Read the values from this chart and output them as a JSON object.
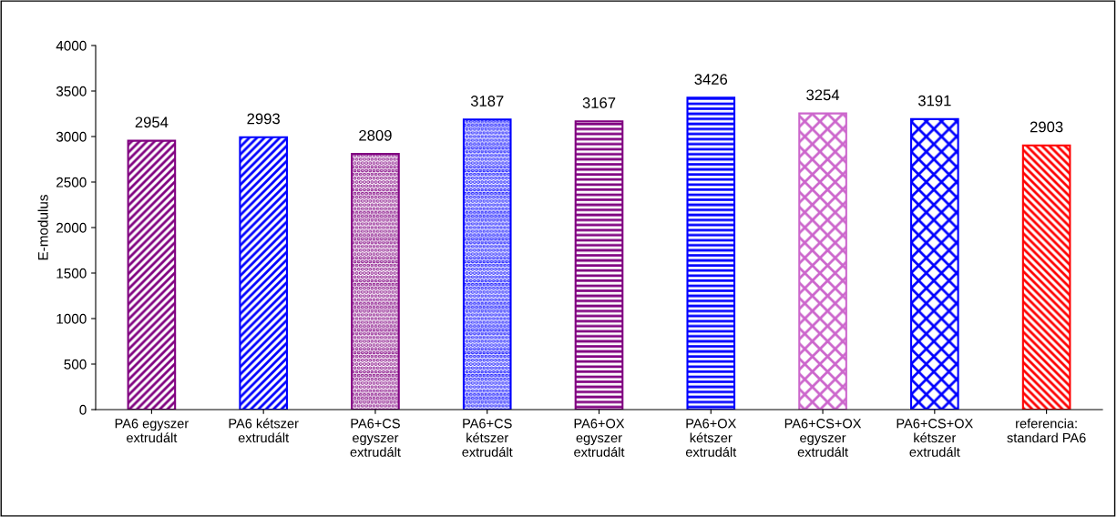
{
  "chart_data": {
    "type": "bar",
    "ylabel": "E-modulus",
    "categories": [
      "PA6 egyszer\nextrudált",
      "PA6 kétszer\nextrudált",
      "PA6+CS\negyszer\nextrudált",
      "PA6+CS\nkétszer\nextrudált",
      "PA6+OX\negyszer\nextrudált",
      "PA6+OX\nkétszer\nextrudált",
      "PA6+CS+OX\negyszer\nextrudált",
      "PA6+CS+OX\nkétszer\nextrudált",
      "referencia:\nstandard PA6"
    ],
    "values": [
      2954,
      2993,
      2809,
      3187,
      3167,
      3426,
      3254,
      3191,
      2903
    ],
    "colors": [
      "#800080",
      "#0000ff",
      "#800080",
      "#0000ff",
      "#800080",
      "#0000ff",
      "#cc66cc",
      "#0000ff",
      "#ff0000"
    ],
    "ylim": [
      0,
      4000
    ],
    "yticks": [
      0,
      500,
      1000,
      1500,
      2000,
      2500,
      3000,
      3500,
      4000
    ],
    "data_labels": true,
    "grid": false,
    "legend": false
  }
}
